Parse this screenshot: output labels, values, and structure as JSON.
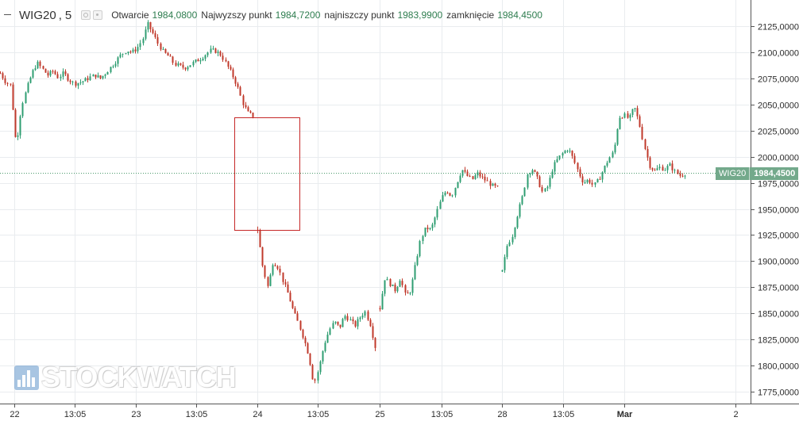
{
  "legend": {
    "symbol": "WIG20",
    "interval": "5",
    "open_label": "Otwarcie",
    "open_value": "1984,0800",
    "high_label": "Najwyzszy punkt",
    "high_value": "1984,7200",
    "low_label": "najniszczy punkt",
    "low_value": "1983,9900",
    "close_label": "zamknięcie",
    "close_value": "1984,4500"
  },
  "price_tag": {
    "symbol": "WIG20",
    "value": "1984,4500",
    "level": 1984.45,
    "color": "#73a98b"
  },
  "watermark": "STOCKWATCH",
  "colors": {
    "up": "#2f9e72",
    "down": "#c0392b",
    "grid": "#e9ecef",
    "rectangle": "#c62828",
    "price_line": "#4c9a6c"
  },
  "chart_data": {
    "type": "candlestick",
    "symbol": "WIG20",
    "interval": "5",
    "ylim": [
      1765,
      2140
    ],
    "y_ticks": [
      "2125,0000",
      "2100,0000",
      "2075,0000",
      "2050,0000",
      "2025,0000",
      "2000,0000",
      "1975,0000",
      "1950,0000",
      "1925,0000",
      "1900,0000",
      "1875,0000",
      "1850,0000",
      "1825,0000",
      "1800,0000",
      "1775,0000"
    ],
    "x_ticks": [
      "22",
      "13:05",
      "23",
      "13:05",
      "24",
      "13:05",
      "25",
      "13:05",
      "28",
      "13:05",
      "Mar",
      "2"
    ],
    "x_ticks_bold": [
      "Mar"
    ],
    "grid": true,
    "last_price": 1984.45,
    "rectangle": {
      "y_top": 2038,
      "y_bottom": 1930
    },
    "series": [
      {
        "session": "22",
        "path": [
          2080,
          2072,
          2068,
          2010,
          2048,
          2065,
          2080,
          2090,
          2084,
          2078,
          2082,
          2076,
          2080,
          2074,
          2070,
          2071,
          2073,
          2076,
          2078,
          2075,
          2080,
          2086,
          2092,
          2098,
          2102,
          2100,
          2104,
          2112,
          2127,
          2118,
          2108,
          2100,
          2096,
          2089,
          2087,
          2085,
          2088,
          2091,
          2094,
          2098,
          2102,
          2101,
          2097,
          2088,
          2079,
          2068,
          2052,
          2042,
          2039
        ]
      },
      {
        "session": "24",
        "path": [
          1930,
          1895,
          1875,
          1900,
          1894,
          1880,
          1868,
          1852,
          1840,
          1826,
          1810,
          1782,
          1798,
          1820,
          1834,
          1842,
          1836,
          1848,
          1844,
          1838,
          1846,
          1852,
          1840,
          1818
        ]
      },
      {
        "session": "25",
        "path": [
          1855,
          1884,
          1878,
          1872,
          1884,
          1866,
          1872,
          1898,
          1922,
          1932,
          1930,
          1945,
          1960,
          1968,
          1962,
          1975,
          1988,
          1982,
          1978,
          1984,
          1980,
          1976,
          1972,
          1970
        ]
      },
      {
        "session": "28",
        "path": [
          1890,
          1915,
          1925,
          1945,
          1962,
          1985,
          1988,
          1978,
          1965,
          1972,
          1990,
          1998,
          2004,
          2008,
          1998,
          1985,
          1975,
          1978,
          1972,
          1978,
          1988,
          1998,
          2005,
          2038,
          2040,
          2036,
          2048,
          2032,
          2010,
          1992,
          1986,
          1990,
          1988,
          1992,
          1986,
          1982,
          1984
        ]
      }
    ]
  }
}
